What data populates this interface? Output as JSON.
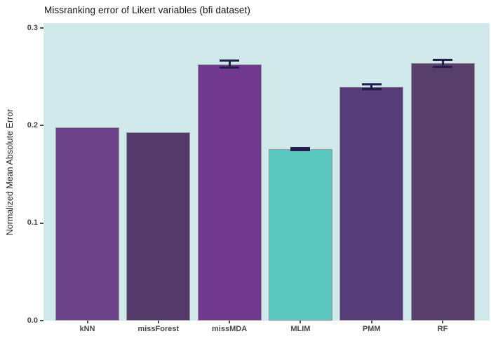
{
  "title": "Missranking error of Likert variables (bfi dataset)",
  "chart_data": {
    "type": "bar",
    "title": "Missranking error of Likert variables (bfi dataset)",
    "categories": [
      "kNN",
      "missForest",
      "missMDA",
      "MLIM",
      "PMM",
      "RF"
    ],
    "values": [
      0.198,
      0.193,
      0.263,
      0.176,
      0.24,
      0.264
    ],
    "errors": [
      null,
      null,
      0.0035,
      0.001,
      0.0025,
      0.0035
    ],
    "bar_colors": [
      "#6b4386",
      "#533a6b",
      "#70398f",
      "#5bc8c0",
      "#563d78",
      "#573f69"
    ],
    "xlabel": "",
    "ylabel": "Normalized Mean Absolute Error",
    "ylim": [
      0,
      0.3
    ],
    "yticks": [
      0.0,
      0.1,
      0.2,
      0.3
    ],
    "ytick_labels": [
      "0.0",
      "0.1",
      "0.2",
      "0.3"
    ],
    "grid": false,
    "legend_position": "none",
    "panel_background": "#d0e9ea",
    "bar_border_color": "#9a9a9a",
    "error_bar_color": "#221e4e",
    "axis_text_color": "#474747",
    "title_color": "#111111"
  }
}
